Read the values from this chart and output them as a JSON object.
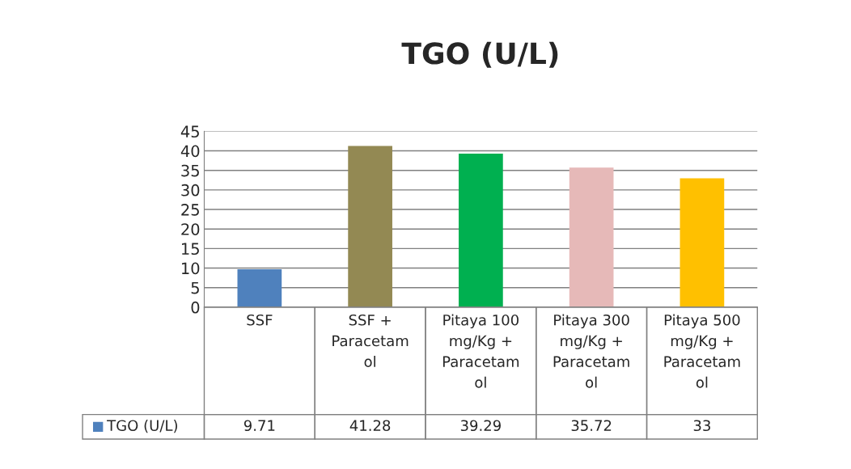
{
  "chart_data": {
    "type": "bar",
    "title": "TGO (U/L)",
    "categories": [
      "SSF",
      "SSF +\nParacetam\nol",
      "Pitaya 100\nmg/Kg +\nParacetam\nol",
      "Pitaya 300\nmg/Kg +\nParacetam\nol",
      "Pitaya 500\nmg/Kg +\nParacetam\nol"
    ],
    "series": [
      {
        "name": "TGO (U/L)",
        "colors": [
          "#4f81bd",
          "#938953",
          "#00b050",
          "#e6b9b8",
          "#ffc000"
        ],
        "values": [
          9.71,
          41.28,
          39.29,
          35.72,
          33
        ]
      }
    ],
    "ylim": [
      0,
      45
    ],
    "yticks": [
      0,
      5,
      10,
      15,
      20,
      25,
      30,
      35,
      40,
      45
    ],
    "grid": "y",
    "data_labels": true,
    "legend": "bottom"
  }
}
